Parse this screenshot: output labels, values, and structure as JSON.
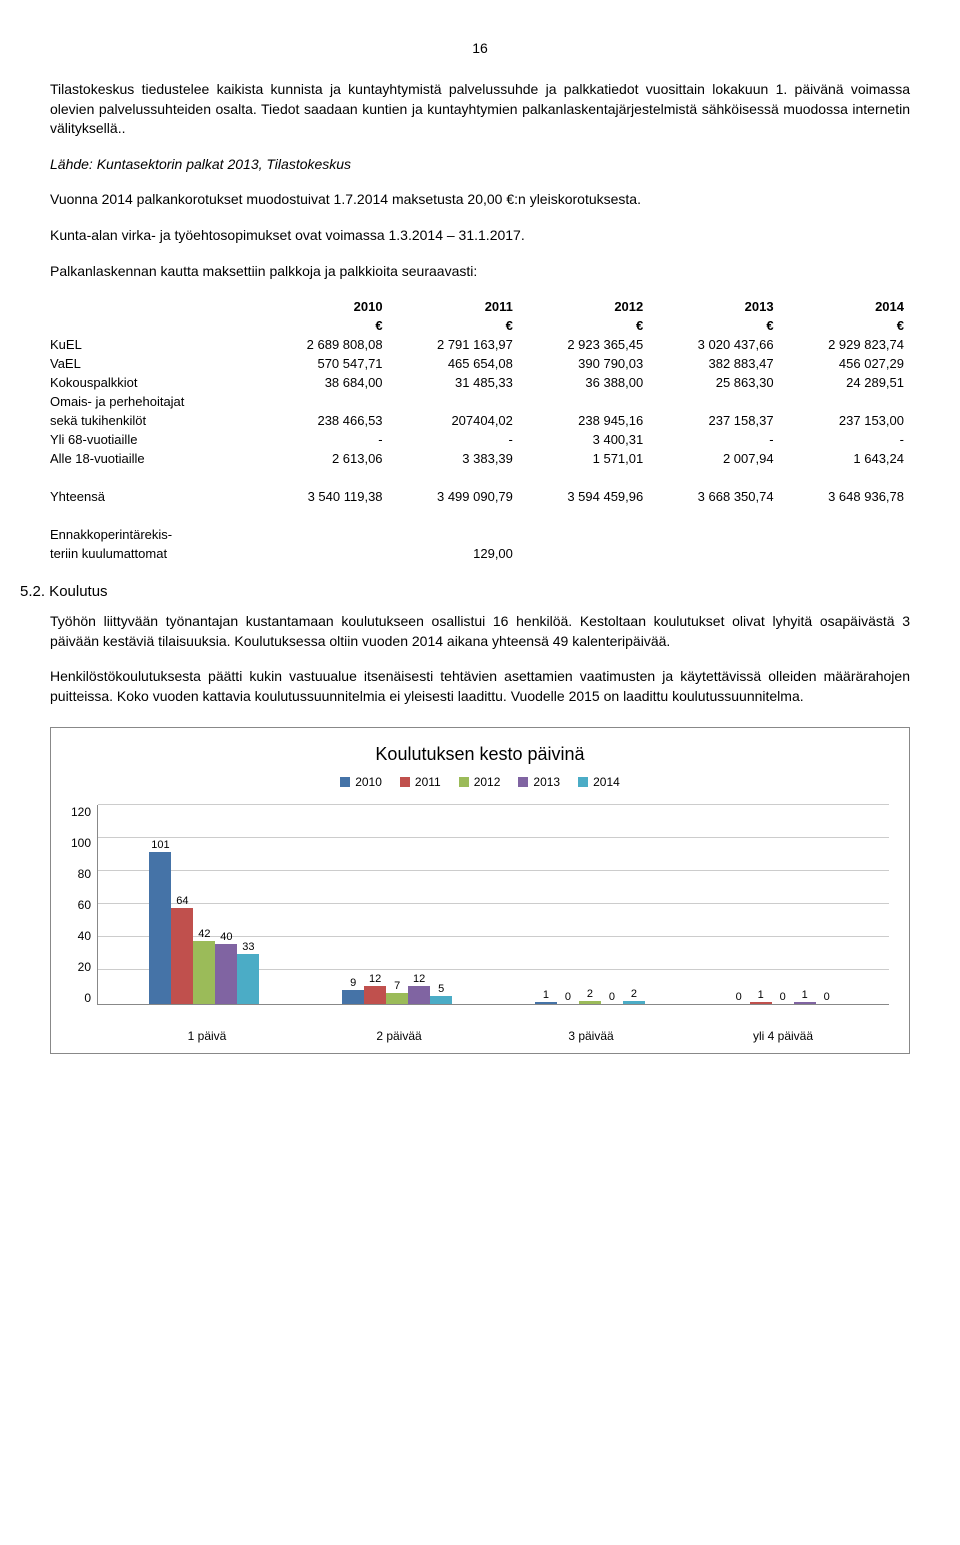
{
  "page_number": "16",
  "para1": "Tilastokeskus tiedustelee kaikista kunnista ja kuntayhtymistä palvelussuhde ja palkkatiedot vuosittain lokakuun 1. päivänä voimassa olevien palvelussuhteiden osalta. Tiedot saadaan kuntien ja kuntayhtymien palkanlaskentajärjestelmistä sähköisessä muodossa internetin välityksellä..",
  "source_note": "Lähde: Kuntasektorin palkat 2013, Tilastokeskus",
  "para2": "Vuonna 2014 palkankorotukset muodostuivat 1.7.2014 maksetusta 20,00 €:n yleiskorotuksesta.",
  "para3": "Kunta-alan virka- ja työehtosopimukset ovat voimassa 1.3.2014 – 31.1.2017.",
  "para4": "Palkanlaskennan kautta maksettiin palkkoja ja palkkioita seuraavasti:",
  "table": {
    "years": [
      "2010",
      "2011",
      "2012",
      "2013",
      "2014"
    ],
    "currency": "€",
    "rows": [
      {
        "label": "KuEL",
        "vals": [
          "2 689 808,08",
          "2 791 163,97",
          "2 923 365,45",
          "3 020 437,66",
          "2 929 823,74"
        ]
      },
      {
        "label": "VaEL",
        "vals": [
          "570 547,71",
          "465 654,08",
          "390 790,03",
          "382 883,47",
          "456 027,29"
        ]
      },
      {
        "label": "Kokouspalkkiot",
        "vals": [
          "38 684,00",
          "31 485,33",
          "36 388,00",
          "25 863,30",
          "24 289,51"
        ]
      },
      {
        "label": "Omais- ja perhehoitajat",
        "vals": [
          "",
          "",
          "",
          "",
          ""
        ]
      },
      {
        "label": "sekä tukihenkilöt",
        "vals": [
          "238 466,53",
          "207404,02",
          "238 945,16",
          "237 158,37",
          "237 153,00"
        ]
      },
      {
        "label": "Yli 68-vuotiaille",
        "vals": [
          "-",
          "-",
          "3 400,31",
          "-",
          "-"
        ]
      },
      {
        "label": "Alle 18-vuotiaille",
        "vals": [
          "2 613,06",
          "3 383,39",
          "1 571,01",
          "2 007,94",
          "1 643,24"
        ]
      }
    ],
    "total": {
      "label": "Yhteensä",
      "vals": [
        "3 540 119,38",
        "3 499 090,79",
        "3 594 459,96",
        "3 668 350,74",
        "3 648 936,78"
      ]
    },
    "extra": {
      "label": "Ennakkoperintärekisteriin kuulumattomat",
      "vals": [
        "",
        "129,00",
        "",
        "",
        ""
      ]
    }
  },
  "section_heading": "5.2. Koulutus",
  "para5": "Työhön liittyvään työnantajan kustantamaan koulutukseen osallistui 16 henkilöä. Kestoltaan koulutukset olivat lyhyitä osapäivästä 3 päivään kestäviä tilaisuuksia. Koulutuksessa oltiin vuoden 2014 aikana yhteensä 49 kalenteripäivää.",
  "para6": "Henkilöstökoulutuksesta päätti kukin vastuualue itsenäisesti tehtävien asettamien vaatimusten ja käytettävissä olleiden määrärahojen puitteissa. Koko vuoden kattavia koulutussuunnitelmia ei yleisesti laadittu. Vuodelle 2015 on laadittu koulutussuunnitelma.",
  "chart": {
    "title": "Koulutuksen kesto päivinä",
    "legend": [
      "2010",
      "2011",
      "2012",
      "2013",
      "2014"
    ],
    "colors": [
      "#4573a7",
      "#c0504d",
      "#9bbb59",
      "#8064a2",
      "#4bacc6"
    ],
    "y_ticks": [
      "120",
      "100",
      "80",
      "60",
      "40",
      "20",
      "0"
    ],
    "y_max": 120,
    "categories": [
      "1 päivä",
      "2 päivää",
      "3 päivää",
      "yli 4 päivää"
    ],
    "data": [
      [
        101,
        64,
        42,
        40,
        33
      ],
      [
        9,
        12,
        7,
        12,
        5
      ],
      [
        1,
        0,
        2,
        0,
        2
      ],
      [
        0,
        1,
        0,
        1,
        0
      ]
    ]
  }
}
